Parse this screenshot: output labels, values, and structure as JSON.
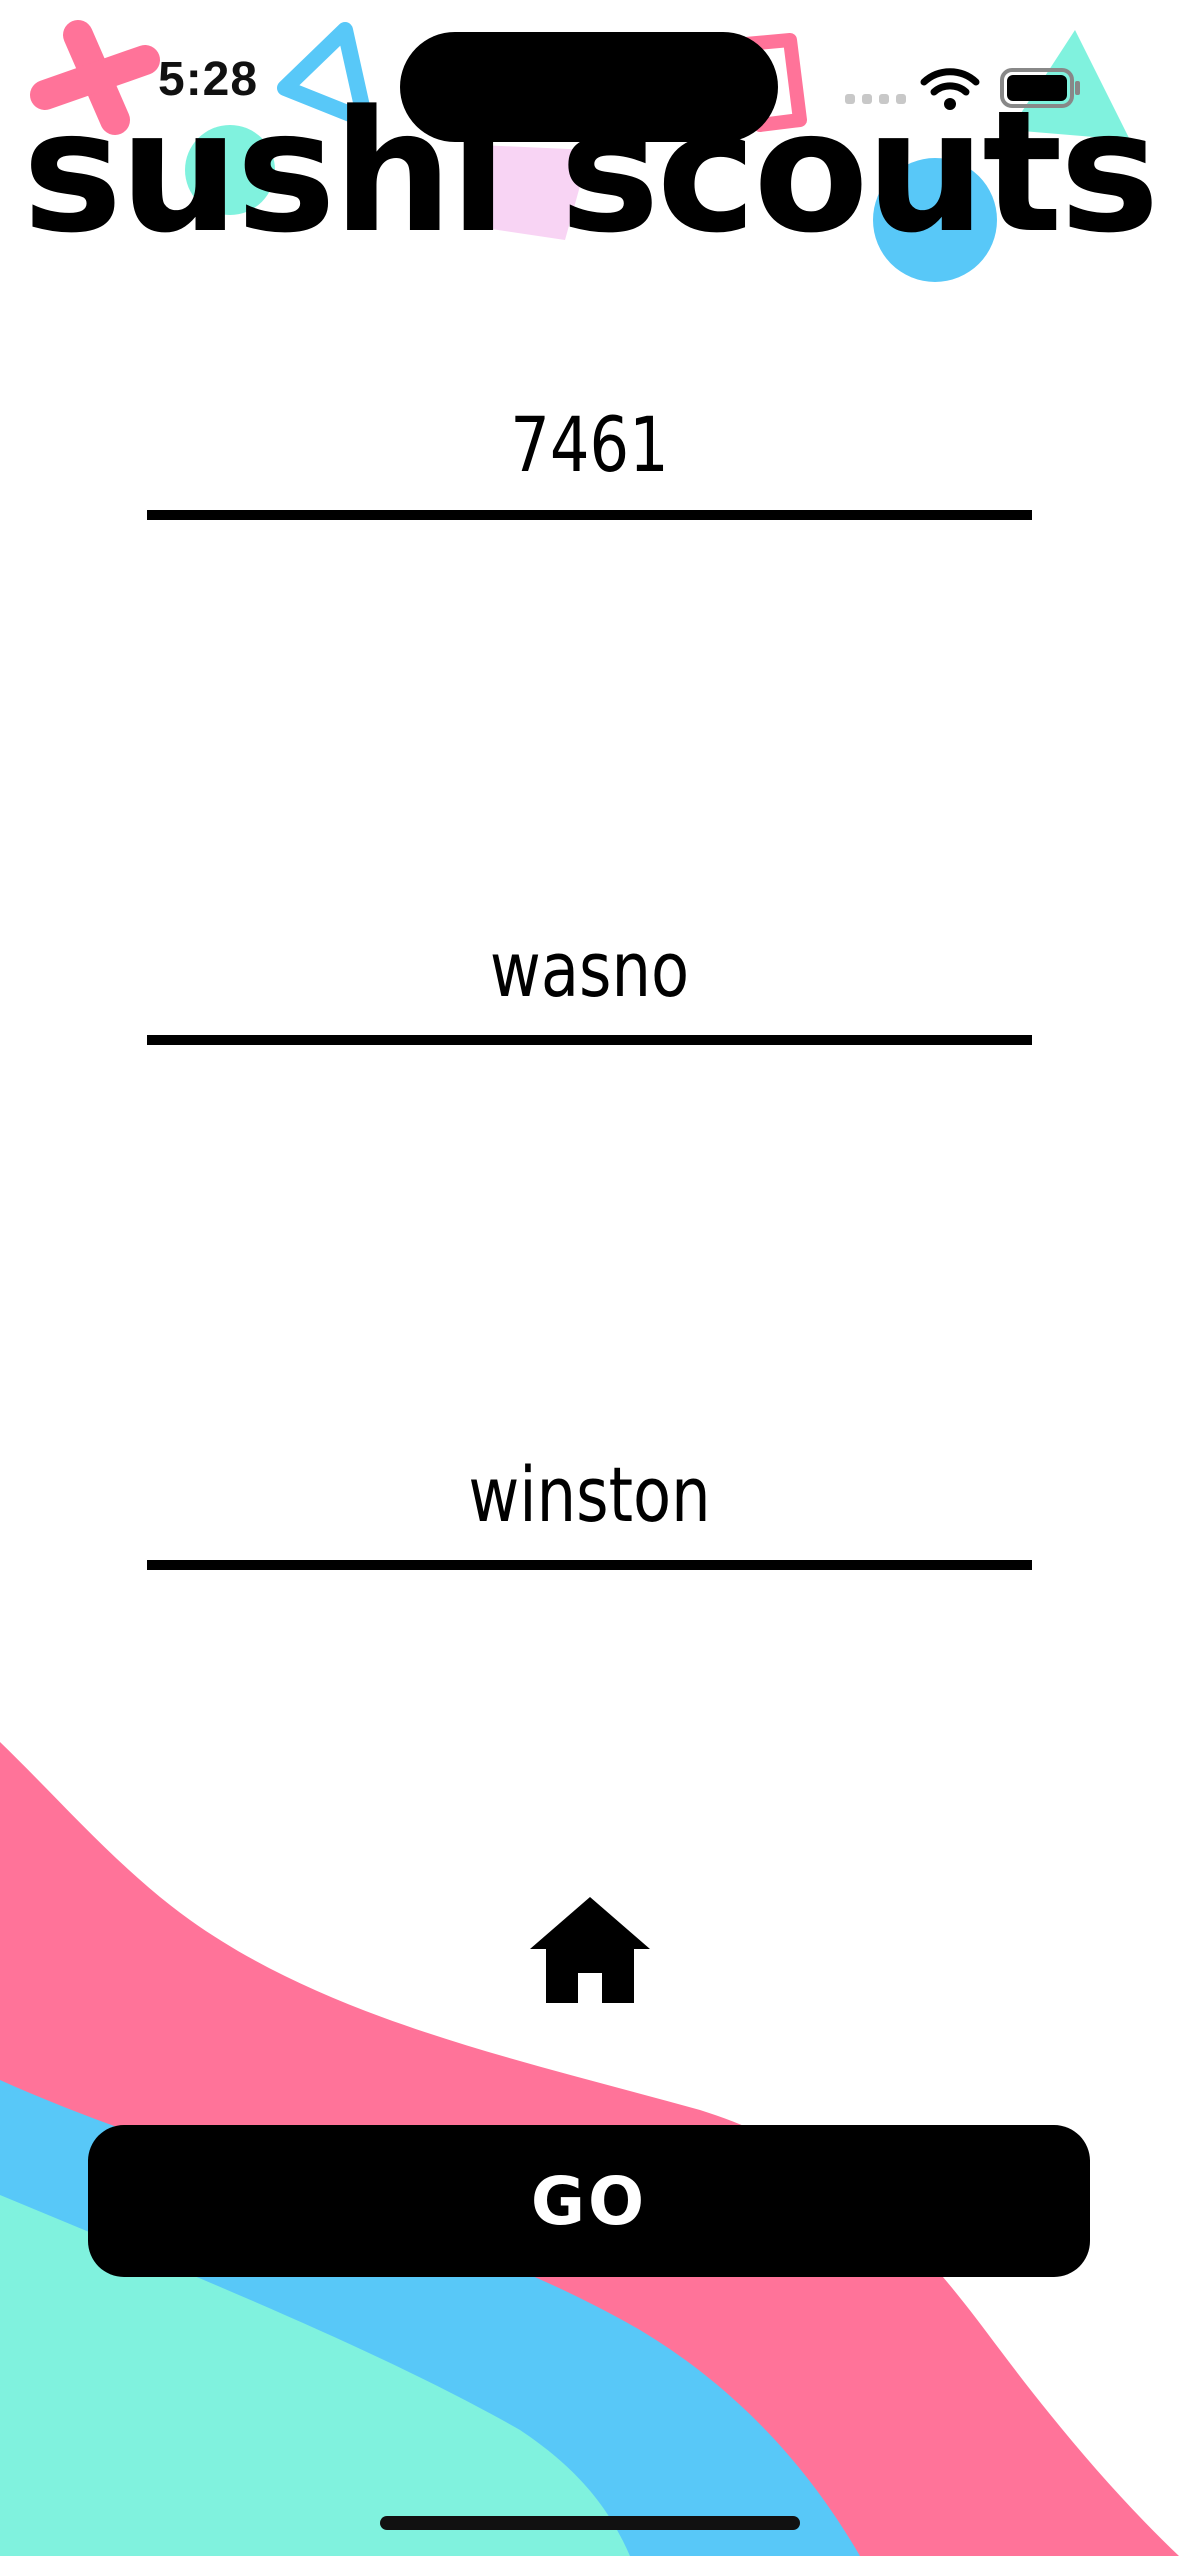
{
  "status_bar": {
    "time": "5:28",
    "icons": [
      "cellular-signal-icon",
      "wifi-icon",
      "battery-icon"
    ]
  },
  "header": {
    "title": "sushi scouts"
  },
  "form": {
    "fields": [
      {
        "name": "team-number",
        "value": "7461"
      },
      {
        "name": "scouter-name-1",
        "value": "wasno"
      },
      {
        "name": "scouter-name-2",
        "value": "winston"
      }
    ]
  },
  "nav": {
    "home_icon": "home-icon"
  },
  "actions": {
    "go_label": "GO"
  },
  "colors": {
    "pink": "#ff7399",
    "blue": "#58c8f8",
    "mint": "#80f2de",
    "light_pink": "#f8d4f4",
    "black": "#000000",
    "background": "#ffffff"
  }
}
